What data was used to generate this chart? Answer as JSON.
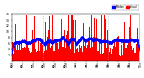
{
  "n_minutes": 1440,
  "red_color": "#ff0000",
  "blue_color": "#0000ff",
  "bg_color": "#ffffff",
  "plot_bg": "#ffffff",
  "ylim": [
    0,
    16
  ],
  "ytick_values": [
    2,
    4,
    6,
    8,
    10,
    12,
    14,
    16
  ],
  "ytick_labels": [
    "2",
    "4",
    "6",
    "8",
    "10",
    "12",
    "14",
    "16"
  ],
  "legend_labels": [
    "Median",
    "Actual"
  ],
  "legend_colors": [
    "#0000ff",
    "#ff0000"
  ],
  "vline_color": "#aaaaaa",
  "vline_positions": [
    360,
    720,
    1080
  ],
  "seed": 7
}
